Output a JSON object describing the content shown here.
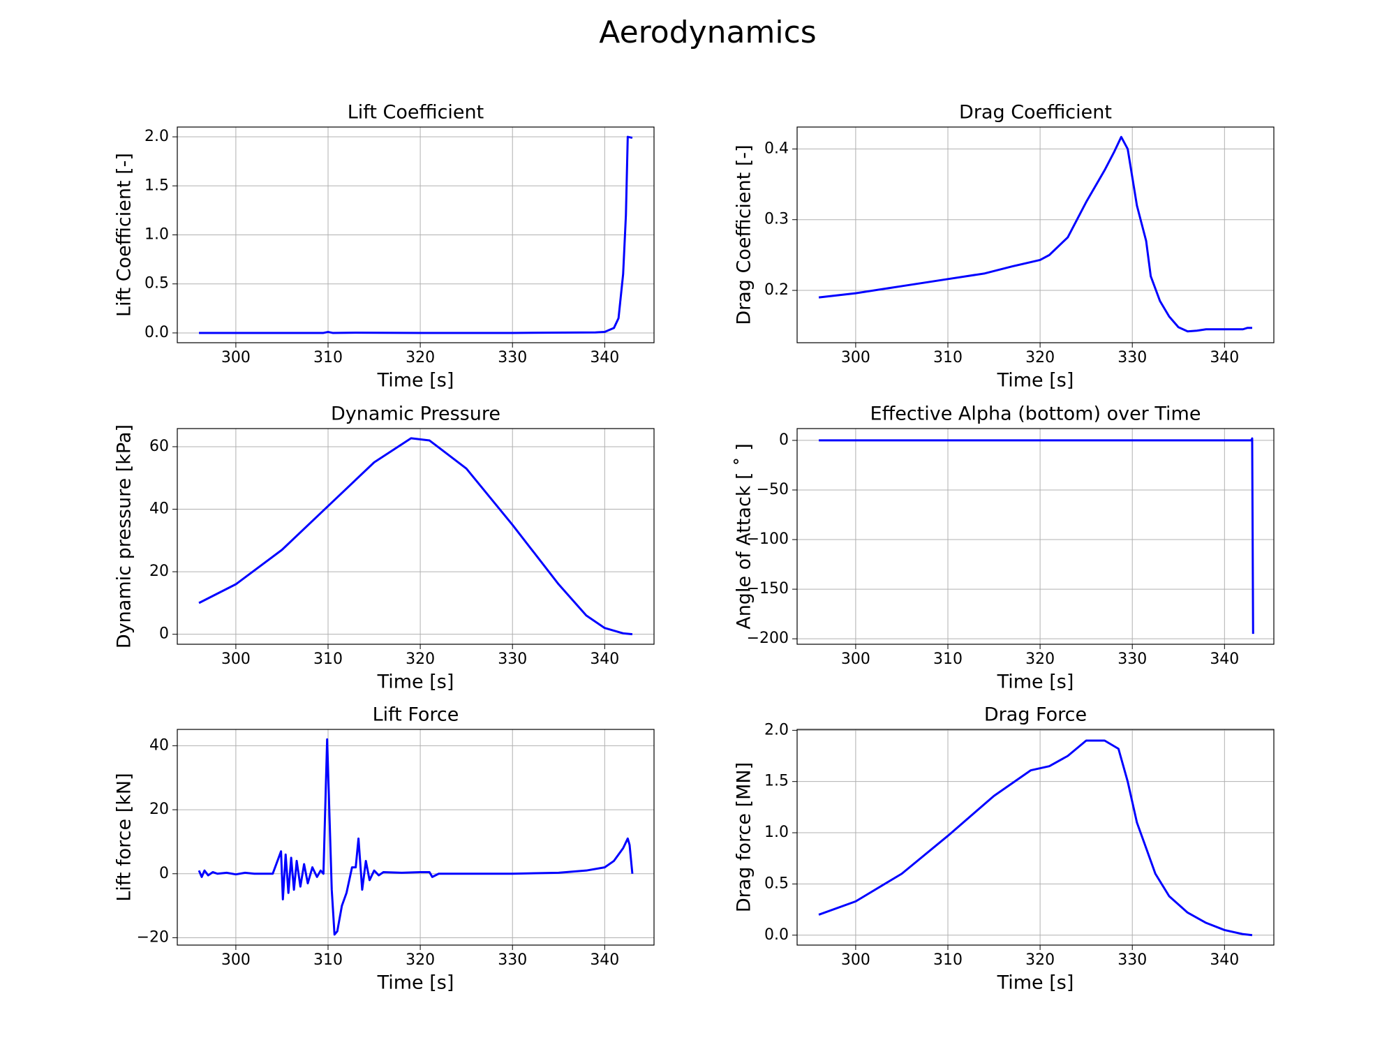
{
  "title": "Aerodynamics",
  "chart_data": [
    {
      "type": "line",
      "title": "Lift Coefficient",
      "xlabel": "Time [s]",
      "ylabel": "Lift Coefficient [-]",
      "color": "#0000ff",
      "grid": true,
      "xlim": [
        293.65,
        345.35
      ],
      "xticks": [
        300,
        310,
        320,
        330,
        340
      ],
      "ylim": [
        -0.1,
        2.1
      ],
      "yticks": [
        {
          "value": 0,
          "label": "0.0"
        },
        0.5,
        {
          "value": 1,
          "label": "1.0"
        },
        1.5,
        {
          "value": 2,
          "label": "2.0"
        }
      ],
      "x": [
        296,
        305,
        309.5,
        310,
        310.5,
        313,
        320,
        330,
        339,
        340,
        341,
        341.5,
        342,
        342.3,
        342.5,
        343
      ],
      "values": [
        0,
        0,
        0,
        0.01,
        0,
        0.002,
        0,
        0,
        0.005,
        0.01,
        0.05,
        0.15,
        0.6,
        1.2,
        2.0,
        1.99
      ]
    },
    {
      "type": "line",
      "title": "Drag Coefficient",
      "xlabel": "Time [s]",
      "ylabel": "Drag Coefficient [-]",
      "color": "#0000ff",
      "grid": true,
      "xlim": [
        293.65,
        345.35
      ],
      "xticks": [
        300,
        310,
        320,
        330,
        340
      ],
      "ylim": [
        0.126,
        0.431
      ],
      "yticks": [
        0.2,
        0.3,
        0.4
      ],
      "x": [
        296,
        300,
        305,
        310,
        314,
        317,
        320,
        321,
        323,
        325,
        327,
        328,
        328.8,
        329.5,
        330.5,
        331.5,
        332,
        333,
        334,
        335,
        336,
        337,
        338,
        340,
        342,
        342.5,
        343
      ],
      "values": [
        0.19,
        0.196,
        0.206,
        0.216,
        0.224,
        0.234,
        0.243,
        0.25,
        0.275,
        0.325,
        0.37,
        0.395,
        0.417,
        0.4,
        0.32,
        0.27,
        0.22,
        0.185,
        0.163,
        0.148,
        0.142,
        0.143,
        0.145,
        0.145,
        0.145,
        0.147,
        0.147
      ]
    },
    {
      "type": "line",
      "title": "Dynamic Pressure",
      "xlabel": "Time [s]",
      "ylabel": "Dynamic pressure [kPa]",
      "color": "#0000ff",
      "grid": true,
      "xlim": [
        293.65,
        345.35
      ],
      "xticks": [
        300,
        310,
        320,
        330,
        340
      ],
      "ylim": [
        -3.2,
        65.8
      ],
      "yticks": [
        0,
        20,
        40,
        60
      ],
      "x": [
        296,
        300,
        305,
        310,
        315,
        319,
        321,
        325,
        330,
        335,
        338,
        340,
        342,
        343
      ],
      "values": [
        10,
        16,
        27,
        41,
        55,
        62.7,
        62,
        53,
        35,
        16,
        6,
        2,
        0.3,
        0
      ]
    },
    {
      "type": "line",
      "title": "Effective Alpha (bottom) over Time",
      "xlabel": "Time [s]",
      "ylabel": "Angle of Attack [ ˚ ]",
      "color": "#0000ff",
      "grid": true,
      "xlim": [
        293.65,
        345.35
      ],
      "xticks": [
        300,
        310,
        320,
        330,
        340
      ],
      "ylim": [
        -205.5,
        11.9
      ],
      "yticks": [
        {
          "value": -200,
          "label": "−200"
        },
        {
          "value": -150,
          "label": "−150"
        },
        {
          "value": -100,
          "label": "−100"
        },
        {
          "value": -50,
          "label": "−50"
        },
        0
      ],
      "x": [
        296,
        310,
        320,
        330,
        342.9,
        343.0,
        343.1
      ],
      "values": [
        0,
        0,
        0,
        0,
        0,
        2,
        -195
      ]
    },
    {
      "type": "line",
      "title": "Lift Force",
      "xlabel": "Time [s]",
      "ylabel": "Lift force [kN]",
      "color": "#0000ff",
      "grid": true,
      "xlim": [
        293.65,
        345.35
      ],
      "xticks": [
        300,
        310,
        320,
        330,
        340
      ],
      "ylim": [
        -22.3,
        45.1
      ],
      "yticks": [
        {
          "value": -20,
          "label": "−20"
        },
        0,
        20,
        40
      ],
      "x": [
        296,
        296.3,
        296.6,
        297,
        297.5,
        298,
        299,
        300,
        301,
        302,
        304,
        304.9,
        305.1,
        305.4,
        305.7,
        306,
        306.3,
        306.6,
        307,
        307.4,
        307.8,
        308.3,
        308.8,
        309.2,
        309.5,
        309.9,
        310.4,
        310.7,
        311,
        311.5,
        312,
        312.6,
        313,
        313.3,
        313.7,
        314.1,
        314.5,
        315,
        315.5,
        316,
        318,
        320,
        321,
        321.3,
        322,
        330,
        335,
        338,
        340,
        341,
        342,
        342.5,
        342.7,
        343
      ],
      "values": [
        1,
        -1,
        1,
        -0.5,
        0.5,
        0,
        0.3,
        -0.2,
        0.3,
        0,
        0,
        7,
        -8,
        6,
        -6,
        5,
        -5,
        4,
        -4,
        3,
        -3,
        2,
        -1,
        1,
        0,
        42,
        -5,
        -19,
        -18,
        -10,
        -6,
        2,
        2,
        11,
        -5,
        4,
        -2,
        1,
        -0.5,
        0.5,
        0.3,
        0.5,
        0.5,
        -1,
        0,
        0,
        0.3,
        1,
        2,
        4,
        8,
        11,
        9,
        0
      ]
    },
    {
      "type": "line",
      "title": "Drag Force",
      "xlabel": "Time [s]",
      "ylabel": "Drag force [MN]",
      "color": "#0000ff",
      "grid": true,
      "xlim": [
        293.65,
        345.35
      ],
      "xticks": [
        300,
        310,
        320,
        330,
        340
      ],
      "ylim": [
        -0.097,
        2.009
      ],
      "yticks": [
        {
          "value": 0,
          "label": "0.0"
        },
        0.5,
        {
          "value": 1,
          "label": "1.0"
        },
        1.5,
        {
          "value": 2,
          "label": "2.0"
        }
      ],
      "x": [
        296,
        300,
        305,
        310,
        315,
        319,
        321,
        323,
        325,
        327,
        328.5,
        329.5,
        330.5,
        331.5,
        332.5,
        334,
        336,
        338,
        340,
        342,
        343
      ],
      "values": [
        0.2,
        0.33,
        0.6,
        0.97,
        1.36,
        1.61,
        1.65,
        1.75,
        1.9,
        1.9,
        1.82,
        1.5,
        1.1,
        0.85,
        0.6,
        0.38,
        0.22,
        0.12,
        0.05,
        0.01,
        0
      ]
    }
  ]
}
